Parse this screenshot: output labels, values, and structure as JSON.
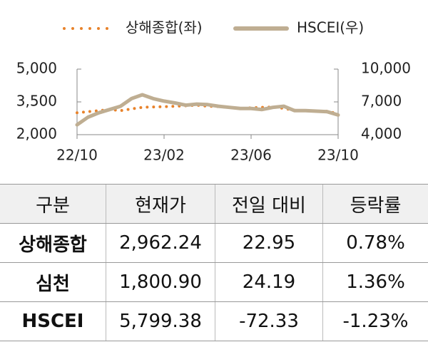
{
  "chart_data": {
    "type": "line",
    "x": [
      "22/10",
      null,
      null,
      null,
      null,
      null,
      null,
      null,
      "23/02",
      null,
      null,
      null,
      null,
      null,
      null,
      null,
      "23/06",
      null,
      null,
      null,
      null,
      null,
      null,
      null,
      "23/10"
    ],
    "series": [
      {
        "name": "상해종합(좌)",
        "color": "#e8822a",
        "style": "dotted",
        "values": [
          3000,
          3050,
          3100,
          3150,
          3100,
          3180,
          3250,
          3270,
          3280,
          3300,
          3320,
          3350,
          3300,
          3280,
          3250,
          3200,
          3230,
          3250,
          3270,
          3200,
          3120,
          3100,
          3080,
          3070,
          2960
        ]
      },
      {
        "name": "HSCEI(우)",
        "color": "#bfae92",
        "axis": "y2",
        "values": [
          4900,
          5600,
          6000,
          6300,
          6600,
          7300,
          7650,
          7300,
          7070,
          6900,
          6700,
          6800,
          6750,
          6600,
          6500,
          6400,
          6400,
          6300,
          6500,
          6600,
          6200,
          6200,
          6150,
          6100,
          5800
        ]
      }
    ],
    "ylim": [
      2000,
      5000
    ],
    "yticks": [
      {
        "value": 2000,
        "label": "2,000"
      },
      {
        "value": 3500,
        "label": "3,500"
      },
      {
        "value": 5000,
        "label": "5,000"
      }
    ],
    "y2lim": [
      4000,
      10000
    ],
    "y2ticks": [
      {
        "value": 4000,
        "label": "4,000"
      },
      {
        "value": 7000,
        "label": "7,000"
      },
      {
        "value": 10000,
        "label": "10,000"
      }
    ],
    "legend": "top"
  },
  "table": {
    "header": [
      "구분",
      "현재가",
      "전일 대비",
      "등락률"
    ],
    "rows": [
      [
        "상해종합",
        "2,962.24",
        "22.95",
        "0.78%"
      ],
      [
        "심천",
        "1,800.90",
        "24.19",
        "1.36%"
      ],
      [
        "HSCEI",
        "5,799.38",
        "-72.33",
        "-1.23%"
      ]
    ]
  }
}
